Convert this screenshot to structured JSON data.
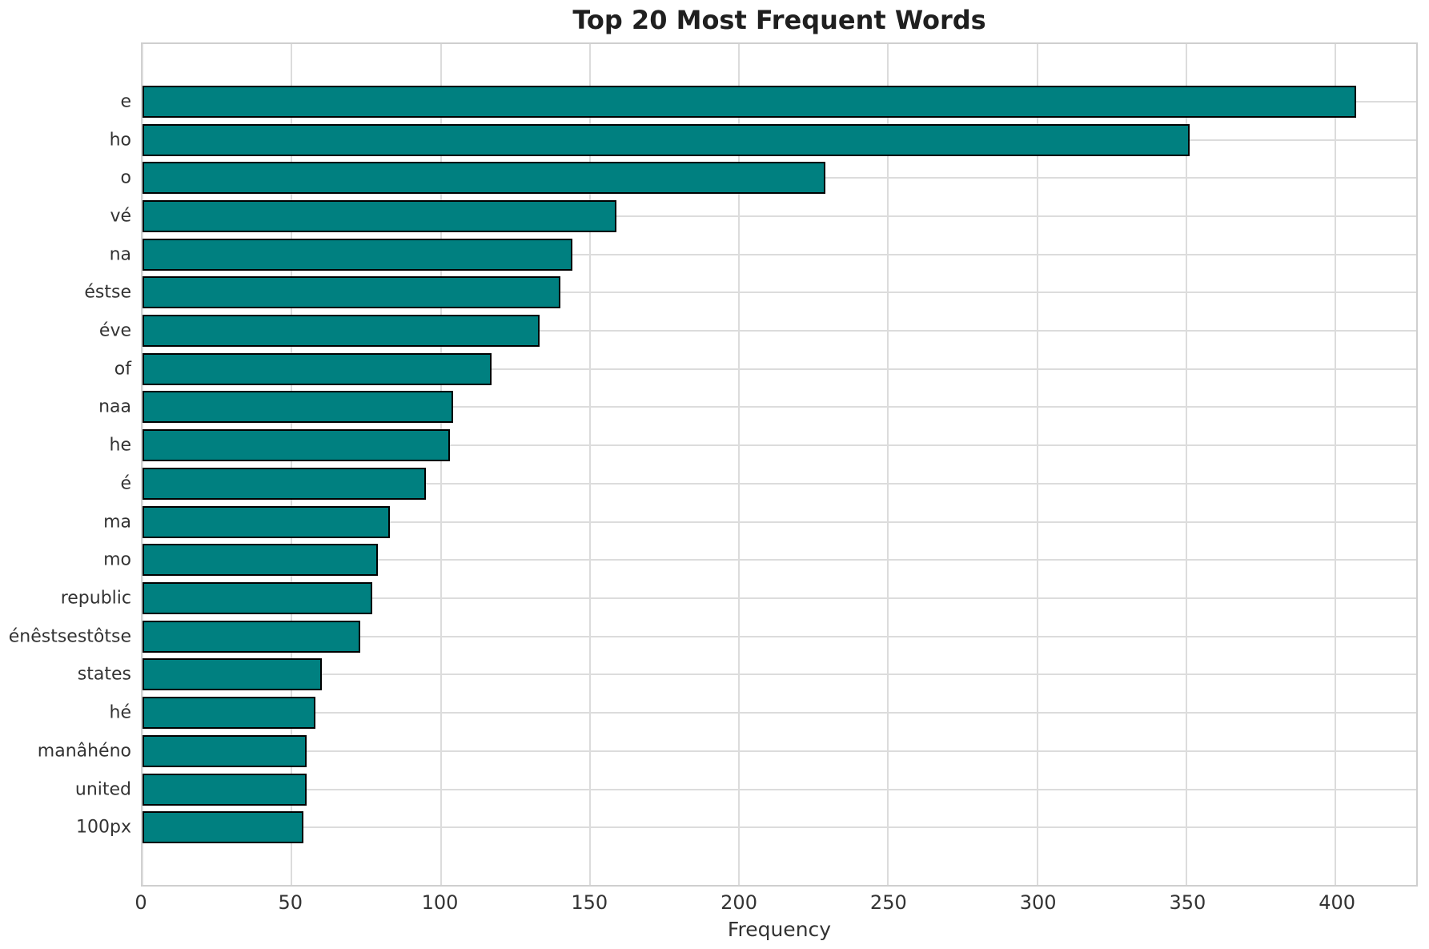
{
  "colors": {
    "bar_fill": "#008080",
    "bar_edge": "#000000",
    "grid": "#dcdcdc",
    "spine": "#cfcfcf",
    "title_color": "#1f1f1f",
    "tick_color": "#333333",
    "background": "#ffffff"
  },
  "chart_data": {
    "type": "bar",
    "orientation": "horizontal",
    "title": "Top 20 Most Frequent Words",
    "xlabel": "Frequency",
    "ylabel": "",
    "categories": [
      "e",
      "ho",
      "o",
      "vé",
      "na",
      "éstse",
      "éve",
      "of",
      "naa",
      "he",
      "é",
      "ma",
      "mo",
      "republic",
      "énêstsestôtse",
      "states",
      "hé",
      "manâhéno",
      "united",
      "100px"
    ],
    "values": [
      407,
      351,
      229,
      159,
      144,
      140,
      133,
      117,
      104,
      103,
      95,
      83,
      79,
      77,
      73,
      60,
      58,
      55,
      55,
      54
    ],
    "xlim": [
      0,
      427
    ],
    "xticks": [
      0,
      50,
      100,
      150,
      200,
      250,
      300,
      350,
      400
    ],
    "grid": true,
    "legend_position": "none",
    "bar_color_name": "teal"
  }
}
